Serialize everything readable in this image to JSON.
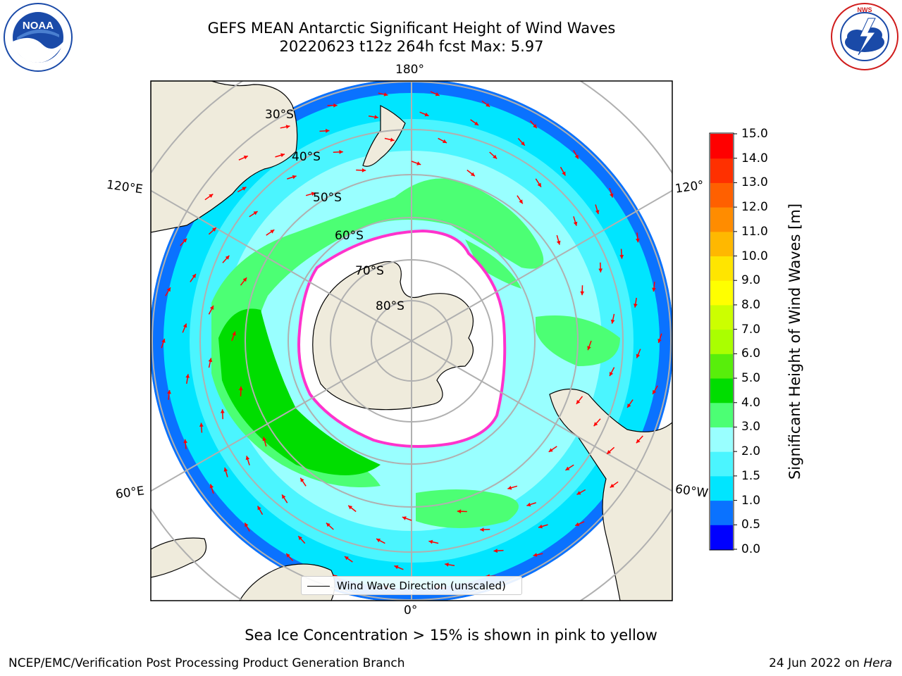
{
  "header": {
    "title_line1": "GEFS MEAN Antarctic Significant Height of Wind Waves",
    "title_line2": "20220623 t12z 264h fcst   Max: 5.97"
  },
  "logos": {
    "left": {
      "name": "NOAA",
      "ring_text": "NATIONAL OCEANIC AND ATMOSPHERIC ADMINISTRATION · U.S. DEPARTMENT OF COMMERCE",
      "color": "#1a4aa8"
    },
    "right": {
      "name": "NATIONAL WEATHER SERVICE",
      "color": "#d01c1c"
    }
  },
  "map": {
    "projection": "south-polar-stereographic",
    "longitude_labels": [
      "180°",
      "120°E",
      "120°",
      "60°E",
      "60°W",
      "0°"
    ],
    "latitude_labels": [
      "30°S",
      "40°S",
      "50°S",
      "60°S",
      "70°S",
      "80°S"
    ],
    "colors": {
      "land": "#efebdc",
      "ice": "#ffffff",
      "arrow": "#ff0000",
      "grid": "#b0b0b0"
    },
    "legend_text": "Wind Wave Direction (unscaled)"
  },
  "colorbar": {
    "title": "Significant Height of Wind Waves [m]",
    "ticks": [
      "0.0",
      "0.5",
      "1.0",
      "1.5",
      "2.0",
      "3.0",
      "4.0",
      "5.0",
      "6.0",
      "7.0",
      "8.0",
      "9.0",
      "10.0",
      "11.0",
      "12.0",
      "13.0",
      "14.0",
      "15.0"
    ],
    "colors": [
      "#0000ff",
      "#0a72ff",
      "#00e5ff",
      "#4bf5ff",
      "#99ffff",
      "#4cff74",
      "#00dd00",
      "#58ee0b",
      "#aaff00",
      "#ccff00",
      "#ffff00",
      "#ffe500",
      "#ffb800",
      "#ff8c00",
      "#ff6000",
      "#ff3000",
      "#ff0000"
    ]
  },
  "footer": {
    "note": "Sea Ice Concentration > 15% is shown in pink to yellow",
    "credit": "NCEP/EMC/Verification Post Processing Product Generation Branch",
    "date": "24 Jun 2022 on",
    "machine": "Hera"
  }
}
